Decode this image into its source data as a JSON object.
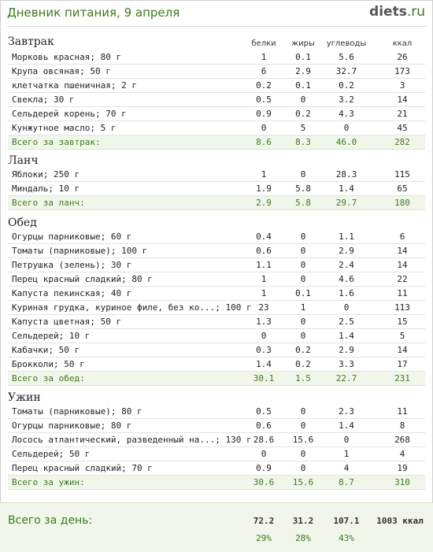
{
  "header": {
    "title": "Дневник питания, 9 апреля",
    "logo_main": "diets",
    "logo_tld": ".ru"
  },
  "columns": {
    "protein": "белки",
    "fat": "жиры",
    "carbs": "углеводы",
    "kcal": "ккал"
  },
  "breakfast": {
    "title": "Завтрак",
    "items": [
      {
        "name": "Морковь красная; 80 г",
        "protein": "1",
        "fat": "0.1",
        "carbs": "5.6",
        "kcal": "26"
      },
      {
        "name": "Крупа овсяная; 50 г",
        "protein": "6",
        "fat": "2.9",
        "carbs": "32.7",
        "kcal": "173"
      },
      {
        "name": "клетчатка пшеничная; 2 г",
        "protein": "0.2",
        "fat": "0.1",
        "carbs": "0.2",
        "kcal": "3"
      },
      {
        "name": "Свекла; 30 г",
        "protein": "0.5",
        "fat": "0",
        "carbs": "3.2",
        "kcal": "14"
      },
      {
        "name": "Сельдерей корень; 70 г",
        "protein": "0.9",
        "fat": "0.2",
        "carbs": "4.3",
        "kcal": "21"
      },
      {
        "name": "Кунжутное масло; 5 г",
        "protein": "0",
        "fat": "5",
        "carbs": "0",
        "kcal": "45"
      }
    ],
    "total": {
      "name": "Всего за завтрак:",
      "protein": "8.6",
      "fat": "8.3",
      "carbs": "46.0",
      "kcal": "282"
    }
  },
  "lunch": {
    "title": "Ланч",
    "items": [
      {
        "name": "Яблоки; 250 г",
        "protein": "1",
        "fat": "0",
        "carbs": "28.3",
        "kcal": "115"
      },
      {
        "name": "Миндаль; 10 г",
        "protein": "1.9",
        "fat": "5.8",
        "carbs": "1.4",
        "kcal": "65"
      }
    ],
    "total": {
      "name": "Всего за ланч:",
      "protein": "2.9",
      "fat": "5.8",
      "carbs": "29.7",
      "kcal": "180"
    }
  },
  "dinner": {
    "title": "Обед",
    "items": [
      {
        "name": "Огурцы парниковые; 60 г",
        "protein": "0.4",
        "fat": "0",
        "carbs": "1.1",
        "kcal": "6"
      },
      {
        "name": "Томаты (парниковые); 100 г",
        "protein": "0.6",
        "fat": "0",
        "carbs": "2.9",
        "kcal": "14"
      },
      {
        "name": "Петрушка (зелень); 30 г",
        "protein": "1.1",
        "fat": "0",
        "carbs": "2.4",
        "kcal": "14"
      },
      {
        "name": "Перец красный сладкий; 80 г",
        "protein": "1",
        "fat": "0",
        "carbs": "4.6",
        "kcal": "22"
      },
      {
        "name": "Капуста пекинская; 40 г",
        "protein": "1",
        "fat": "0.1",
        "carbs": "1.6",
        "kcal": "11"
      },
      {
        "name": "Куриная грудка, куриное филе, без ко...; 100 г",
        "protein": "23",
        "fat": "1",
        "carbs": "0",
        "kcal": "113"
      },
      {
        "name": "Капуста цветная; 50 г",
        "protein": "1.3",
        "fat": "0",
        "carbs": "2.5",
        "kcal": "15"
      },
      {
        "name": "Сельдерей; 10 г",
        "protein": "0",
        "fat": "0",
        "carbs": "1.4",
        "kcal": "5"
      },
      {
        "name": "Кабачки; 50 г",
        "protein": "0.3",
        "fat": "0.2",
        "carbs": "2.9",
        "kcal": "14"
      },
      {
        "name": "Брокколи; 50 г",
        "protein": "1.4",
        "fat": "0.2",
        "carbs": "3.3",
        "kcal": "17"
      }
    ],
    "total": {
      "name": "Всего за обед:",
      "protein": "30.1",
      "fat": "1.5",
      "carbs": "22.7",
      "kcal": "231"
    }
  },
  "supper": {
    "title": "Ужин",
    "items": [
      {
        "name": "Томаты (парниковые); 80 г",
        "protein": "0.5",
        "fat": "0",
        "carbs": "2.3",
        "kcal": "11"
      },
      {
        "name": "Огурцы парниковые; 80 г",
        "protein": "0.6",
        "fat": "0",
        "carbs": "1.4",
        "kcal": "8"
      },
      {
        "name": "Лосось атлантический, разведенный на...; 130 г",
        "protein": "28.6",
        "fat": "15.6",
        "carbs": "0",
        "kcal": "268"
      },
      {
        "name": "Сельдерей; 50 г",
        "protein": "0",
        "fat": "0",
        "carbs": "1",
        "kcal": "4"
      },
      {
        "name": "Перец красный сладкий; 70 г",
        "protein": "0.9",
        "fat": "0",
        "carbs": "4",
        "kcal": "19"
      }
    ],
    "total": {
      "name": "Всего за ужин:",
      "protein": "30.6",
      "fat": "15.6",
      "carbs": "8.7",
      "kcal": "310"
    }
  },
  "day": {
    "label": "Всего за день:",
    "protein": "72.2",
    "fat": "31.2",
    "carbs": "107.1",
    "kcal": "1003 ккал",
    "protein_pct": "29%",
    "fat_pct": "28%",
    "carbs_pct": "43%"
  },
  "colors": {
    "accent_green": "#3a7a1e",
    "total_row_bg": "#f0f7ea"
  }
}
